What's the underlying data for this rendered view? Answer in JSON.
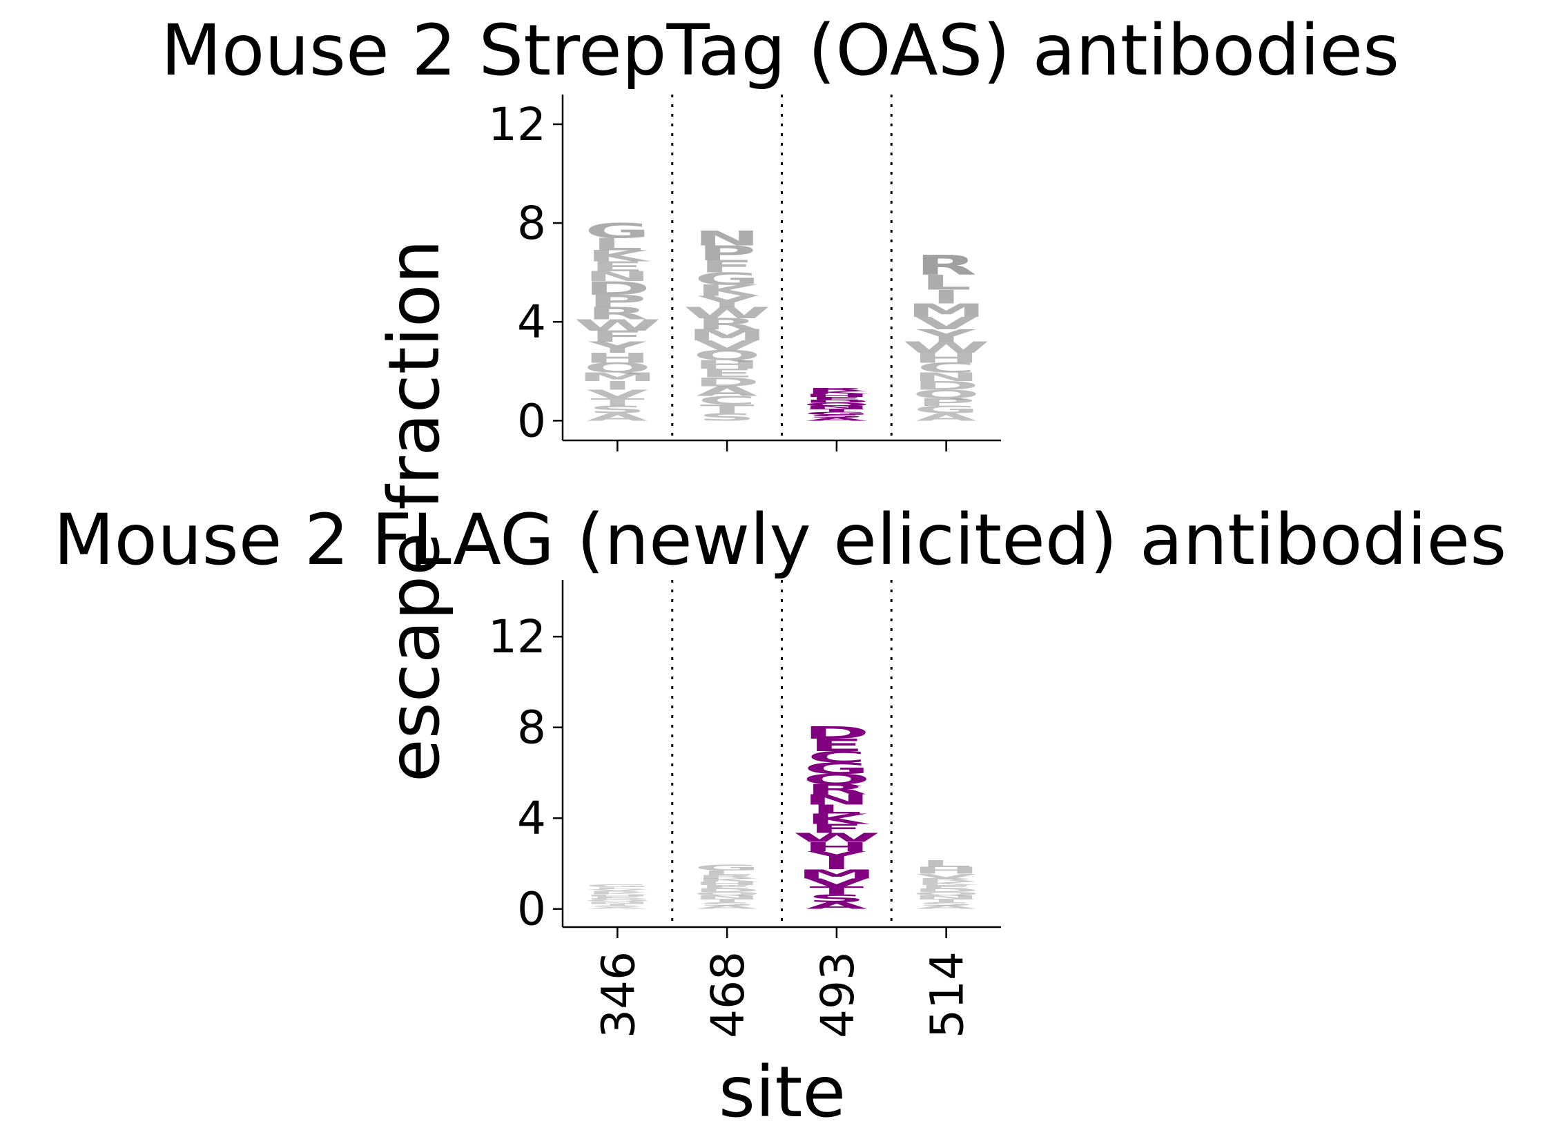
{
  "chart_data": [
    {
      "type": "logo",
      "title": "Mouse 2 StrepTag (OAS) antibodies",
      "xlabel": "site",
      "ylabel": "escape fraction",
      "ylim": [
        -0.8,
        13.2
      ],
      "yticks": [
        "0",
        "4",
        "8",
        "12"
      ],
      "categories": [
        "346",
        "468",
        "493",
        "514"
      ],
      "series": [
        {
          "site": "346",
          "highlight": false,
          "letters": [
            {
              "aa": "A",
              "value": 0.3
            },
            {
              "aa": "S",
              "value": 0.3
            },
            {
              "aa": "T",
              "value": 0.3
            },
            {
              "aa": "V",
              "value": 0.35
            },
            {
              "aa": "I",
              "value": 0.35
            },
            {
              "aa": "M",
              "value": 0.35
            },
            {
              "aa": "Q",
              "value": 0.4
            },
            {
              "aa": "H",
              "value": 0.4
            },
            {
              "aa": "Y",
              "value": 0.45
            },
            {
              "aa": "F",
              "value": 0.45
            },
            {
              "aa": "W",
              "value": 0.45
            },
            {
              "aa": "R",
              "value": 0.5
            },
            {
              "aa": "P",
              "value": 0.5
            },
            {
              "aa": "D",
              "value": 0.55
            },
            {
              "aa": "N",
              "value": 0.4
            },
            {
              "aa": "E",
              "value": 0.4
            },
            {
              "aa": "K",
              "value": 0.45
            },
            {
              "aa": "L",
              "value": 0.5
            },
            {
              "aa": "G",
              "value": 0.6
            }
          ]
        },
        {
          "site": "468",
          "highlight": false,
          "letters": [
            {
              "aa": "S",
              "value": 0.3
            },
            {
              "aa": "T",
              "value": 0.35
            },
            {
              "aa": "C",
              "value": 0.35
            },
            {
              "aa": "A",
              "value": 0.4
            },
            {
              "aa": "D",
              "value": 0.35
            },
            {
              "aa": "E",
              "value": 0.35
            },
            {
              "aa": "H",
              "value": 0.35
            },
            {
              "aa": "Q",
              "value": 0.4
            },
            {
              "aa": "V",
              "value": 0.4
            },
            {
              "aa": "M",
              "value": 0.45
            },
            {
              "aa": "R",
              "value": 0.45
            },
            {
              "aa": "W",
              "value": 0.45
            },
            {
              "aa": "Y",
              "value": 0.45
            },
            {
              "aa": "K",
              "value": 0.45
            },
            {
              "aa": "G",
              "value": 0.5
            },
            {
              "aa": "F",
              "value": 0.5
            },
            {
              "aa": "P",
              "value": 0.6
            },
            {
              "aa": "N",
              "value": 0.6
            }
          ]
        },
        {
          "site": "493",
          "highlight": true,
          "letters": [
            {
              "aa": "A",
              "value": 0.12
            },
            {
              "aa": "S",
              "value": 0.12
            },
            {
              "aa": "G",
              "value": 0.12
            },
            {
              "aa": "T",
              "value": 0.12
            },
            {
              "aa": "N",
              "value": 0.12
            },
            {
              "aa": "Q",
              "value": 0.12
            },
            {
              "aa": "D",
              "value": 0.12
            },
            {
              "aa": "E",
              "value": 0.12
            },
            {
              "aa": "H",
              "value": 0.12
            },
            {
              "aa": "K",
              "value": 0.12
            },
            {
              "aa": "R",
              "value": 0.12
            }
          ]
        },
        {
          "site": "514",
          "highlight": false,
          "letters": [
            {
              "aa": "A",
              "value": 0.3
            },
            {
              "aa": "G",
              "value": 0.3
            },
            {
              "aa": "P",
              "value": 0.3
            },
            {
              "aa": "Q",
              "value": 0.35
            },
            {
              "aa": "D",
              "value": 0.35
            },
            {
              "aa": "N",
              "value": 0.35
            },
            {
              "aa": "C",
              "value": 0.4
            },
            {
              "aa": "H",
              "value": 0.4
            },
            {
              "aa": "W",
              "value": 0.45
            },
            {
              "aa": "Y",
              "value": 0.5
            },
            {
              "aa": "V",
              "value": 0.5
            },
            {
              "aa": "M",
              "value": 0.55
            },
            {
              "aa": "I",
              "value": 0.55
            },
            {
              "aa": "L",
              "value": 0.6
            },
            {
              "aa": "R",
              "value": 0.8
            }
          ]
        }
      ]
    },
    {
      "type": "logo",
      "title": "Mouse 2 FLAG (newly elicited) antibodies",
      "xlabel": "site",
      "ylabel": "escape fraction",
      "ylim": [
        -0.8,
        14.5
      ],
      "yticks": [
        "0",
        "4",
        "8",
        "12"
      ],
      "categories": [
        "346",
        "468",
        "493",
        "514"
      ],
      "series": [
        {
          "site": "346",
          "highlight": false,
          "letters": [
            {
              "aa": "A",
              "value": 0.08
            },
            {
              "aa": "S",
              "value": 0.08
            },
            {
              "aa": "T",
              "value": 0.08
            },
            {
              "aa": "N",
              "value": 0.08
            },
            {
              "aa": "Q",
              "value": 0.08
            },
            {
              "aa": "D",
              "value": 0.08
            },
            {
              "aa": "E",
              "value": 0.08
            },
            {
              "aa": "H",
              "value": 0.08
            },
            {
              "aa": "K",
              "value": 0.08
            },
            {
              "aa": "R",
              "value": 0.08
            },
            {
              "aa": "V",
              "value": 0.08
            },
            {
              "aa": "L",
              "value": 0.08
            },
            {
              "aa": "G",
              "value": 0.12
            }
          ]
        },
        {
          "site": "468",
          "highlight": false,
          "letters": [
            {
              "aa": "A",
              "value": 0.15
            },
            {
              "aa": "S",
              "value": 0.15
            },
            {
              "aa": "T",
              "value": 0.15
            },
            {
              "aa": "N",
              "value": 0.15
            },
            {
              "aa": "Q",
              "value": 0.15
            },
            {
              "aa": "D",
              "value": 0.15
            },
            {
              "aa": "E",
              "value": 0.15
            },
            {
              "aa": "H",
              "value": 0.15
            },
            {
              "aa": "K",
              "value": 0.15
            },
            {
              "aa": "R",
              "value": 0.15
            },
            {
              "aa": "L",
              "value": 0.2
            },
            {
              "aa": "G",
              "value": 0.25
            }
          ]
        },
        {
          "site": "493",
          "highlight": true,
          "letters": [
            {
              "aa": "A",
              "value": 0.3
            },
            {
              "aa": "S",
              "value": 0.35
            },
            {
              "aa": "T",
              "value": 0.35
            },
            {
              "aa": "V",
              "value": 0.35
            },
            {
              "aa": "M",
              "value": 0.4
            },
            {
              "aa": "I",
              "value": 0.4
            },
            {
              "aa": "Y",
              "value": 0.4
            },
            {
              "aa": "H",
              "value": 0.4
            },
            {
              "aa": "W",
              "value": 0.4
            },
            {
              "aa": "F",
              "value": 0.4
            },
            {
              "aa": "K",
              "value": 0.45
            },
            {
              "aa": "L",
              "value": 0.4
            },
            {
              "aa": "N",
              "value": 0.45
            },
            {
              "aa": "R",
              "value": 0.45
            },
            {
              "aa": "Q",
              "value": 0.45
            },
            {
              "aa": "G",
              "value": 0.5
            },
            {
              "aa": "C",
              "value": 0.5
            },
            {
              "aa": "E",
              "value": 0.55
            },
            {
              "aa": "D",
              "value": 0.55
            }
          ]
        },
        {
          "site": "514",
          "highlight": false,
          "letters": [
            {
              "aa": "A",
              "value": 0.15
            },
            {
              "aa": "S",
              "value": 0.15
            },
            {
              "aa": "T",
              "value": 0.15
            },
            {
              "aa": "N",
              "value": 0.15
            },
            {
              "aa": "Q",
              "value": 0.15
            },
            {
              "aa": "D",
              "value": 0.15
            },
            {
              "aa": "E",
              "value": 0.15
            },
            {
              "aa": "K",
              "value": 0.15
            },
            {
              "aa": "R",
              "value": 0.15
            },
            {
              "aa": "V",
              "value": 0.2
            },
            {
              "aa": "H",
              "value": 0.3
            },
            {
              "aa": "L",
              "value": 0.3
            }
          ]
        }
      ]
    }
  ],
  "colors": {
    "highlight": "#800080",
    "other": "#a0a0a0",
    "grid": "#000000"
  }
}
